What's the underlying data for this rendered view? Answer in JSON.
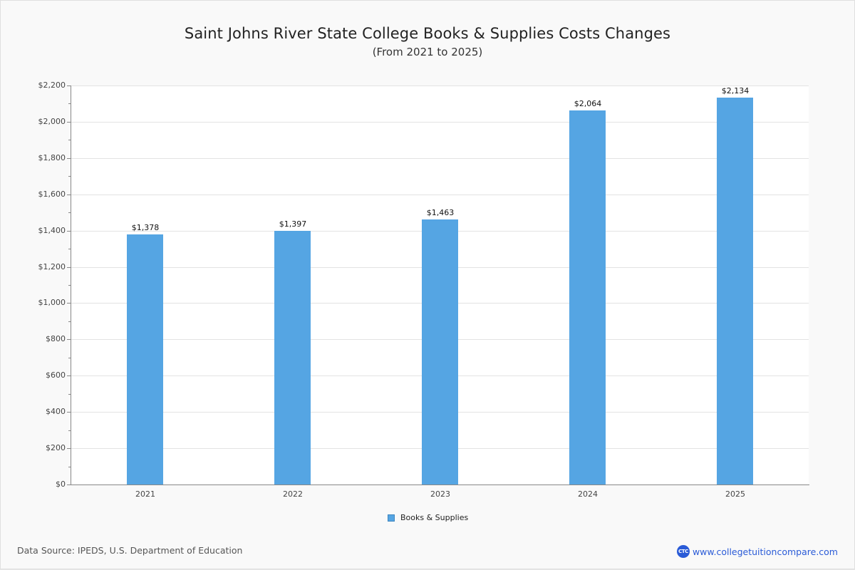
{
  "chart_data": {
    "type": "bar",
    "title": "Saint Johns River State College Books & Supplies Costs Changes",
    "subtitle": "(From 2021 to 2025)",
    "categories": [
      "2021",
      "2022",
      "2023",
      "2024",
      "2025"
    ],
    "series": [
      {
        "name": "Books & Supplies",
        "color": "#55a5e3",
        "values": [
          1378,
          1397,
          1463,
          2064,
          2134
        ],
        "labels": [
          "$1,378",
          "$1,397",
          "$1,463",
          "$2,064",
          "$2,134"
        ]
      }
    ],
    "xlabel": "",
    "ylabel": "",
    "ylim": [
      0,
      2200
    ],
    "yticks": [
      0,
      200,
      400,
      600,
      800,
      1000,
      1200,
      1400,
      1600,
      1800,
      2000,
      2200
    ],
    "ytick_labels": [
      "$0",
      "$200",
      "$400",
      "$600",
      "$800",
      "$1,000",
      "$1,200",
      "$1,400",
      "$1,600",
      "$1,800",
      "$2,000",
      "$2,200"
    ],
    "grid": true,
    "legend_position": "bottom-center"
  },
  "footer": {
    "source": "Data Source: IPEDS, U.S. Department of Education",
    "brand_logo": "CTC",
    "brand_url": "www.collegetuitioncompare.com"
  }
}
